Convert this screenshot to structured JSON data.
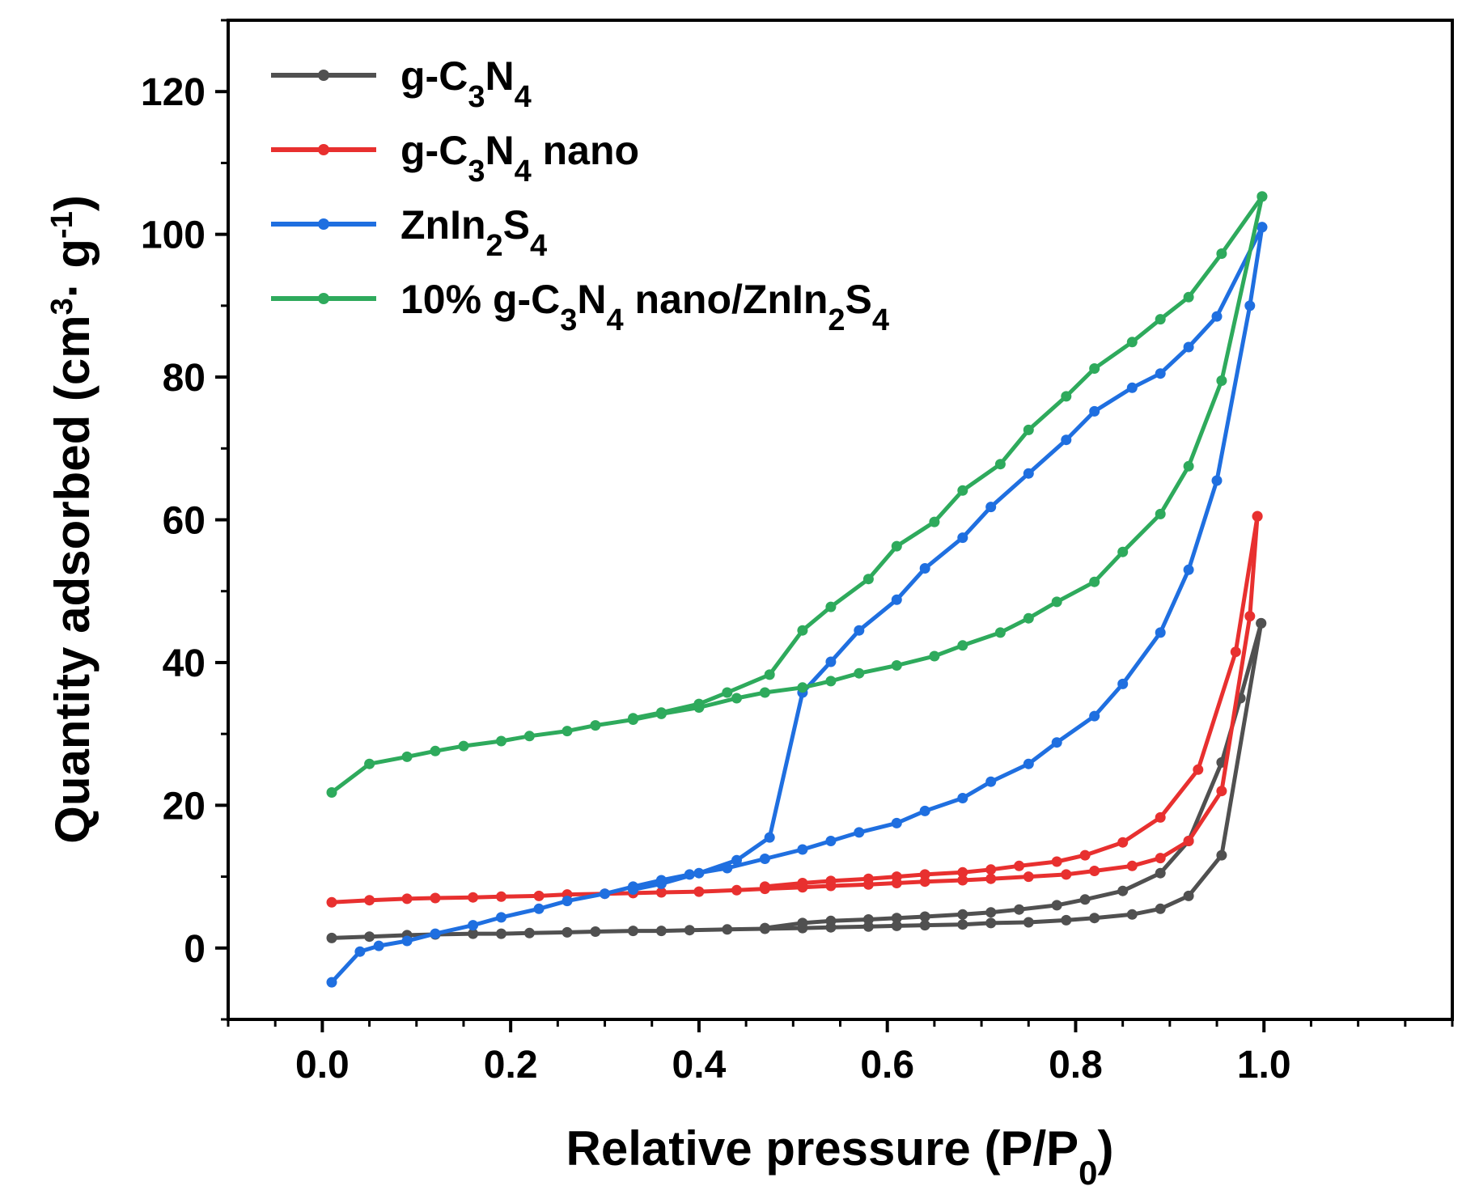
{
  "chart_data": {
    "type": "line",
    "title": "",
    "xlabel": {
      "main": "Relative pressure (P/P",
      "sub": "0",
      "end": ")"
    },
    "ylabel": {
      "main": "Quantity adsorbed (cm",
      "sup": "3",
      "mid": "· g",
      "sup2": "-1",
      "end": ")"
    },
    "xlim": [
      -0.1,
      1.2
    ],
    "ylim": [
      -10,
      130
    ],
    "xticks": [
      0.0,
      0.2,
      0.4,
      0.6,
      0.8,
      1.0
    ],
    "xtick_labels": [
      "0.0",
      "0.2",
      "0.4",
      "0.6",
      "0.8",
      "1.0"
    ],
    "yticks": [
      0,
      20,
      40,
      60,
      80,
      100,
      120
    ],
    "ytick_labels": [
      "0",
      "20",
      "40",
      "60",
      "80",
      "100",
      "120"
    ],
    "legend_position": "top-left",
    "series": [
      {
        "name": "g-C3N4",
        "label_parts": [
          [
            "g-C",
            ""
          ],
          [
            "3",
            "sub"
          ],
          [
            "N",
            ""
          ],
          [
            "4",
            "sub"
          ]
        ],
        "color": "#505050",
        "adsorption": [
          [
            0.01,
            1.4
          ],
          [
            0.05,
            1.6
          ],
          [
            0.09,
            1.8
          ],
          [
            0.12,
            1.9
          ],
          [
            0.16,
            2.0
          ],
          [
            0.19,
            2.0
          ],
          [
            0.22,
            2.1
          ],
          [
            0.26,
            2.2
          ],
          [
            0.29,
            2.3
          ],
          [
            0.33,
            2.4
          ],
          [
            0.36,
            2.4
          ],
          [
            0.39,
            2.5
          ],
          [
            0.43,
            2.6
          ],
          [
            0.47,
            2.7
          ],
          [
            0.51,
            2.8
          ],
          [
            0.54,
            2.9
          ],
          [
            0.58,
            3.0
          ],
          [
            0.61,
            3.1
          ],
          [
            0.64,
            3.2
          ],
          [
            0.68,
            3.3
          ],
          [
            0.71,
            3.5
          ],
          [
            0.75,
            3.6
          ],
          [
            0.79,
            3.9
          ],
          [
            0.82,
            4.2
          ],
          [
            0.86,
            4.7
          ],
          [
            0.89,
            5.5
          ],
          [
            0.92,
            7.3
          ],
          [
            0.955,
            13.0
          ],
          [
            0.997,
            45.5
          ]
        ],
        "desorption": [
          [
            0.997,
            45.5
          ],
          [
            0.975,
            35.0
          ],
          [
            0.955,
            26.0
          ],
          [
            0.92,
            15.0
          ],
          [
            0.89,
            10.5
          ],
          [
            0.85,
            8.0
          ],
          [
            0.81,
            6.8
          ],
          [
            0.78,
            6.0
          ],
          [
            0.74,
            5.4
          ],
          [
            0.71,
            5.0
          ],
          [
            0.68,
            4.7
          ],
          [
            0.64,
            4.4
          ],
          [
            0.61,
            4.2
          ],
          [
            0.58,
            4.0
          ],
          [
            0.54,
            3.8
          ],
          [
            0.51,
            3.5
          ],
          [
            0.47,
            2.8
          ]
        ]
      },
      {
        "name": "g-C3N4 nano",
        "label_parts": [
          [
            "g-C",
            ""
          ],
          [
            "3",
            "sub"
          ],
          [
            "N",
            ""
          ],
          [
            "4",
            "sub"
          ],
          [
            " nano",
            ""
          ]
        ],
        "color": "#e8302f",
        "adsorption": [
          [
            0.01,
            6.4
          ],
          [
            0.05,
            6.7
          ],
          [
            0.09,
            6.9
          ],
          [
            0.12,
            7.0
          ],
          [
            0.16,
            7.1
          ],
          [
            0.19,
            7.2
          ],
          [
            0.23,
            7.3
          ],
          [
            0.26,
            7.5
          ],
          [
            0.3,
            7.6
          ],
          [
            0.33,
            7.7
          ],
          [
            0.36,
            7.8
          ],
          [
            0.4,
            7.9
          ],
          [
            0.44,
            8.1
          ],
          [
            0.47,
            8.3
          ],
          [
            0.51,
            8.5
          ],
          [
            0.54,
            8.7
          ],
          [
            0.58,
            8.9
          ],
          [
            0.61,
            9.1
          ],
          [
            0.64,
            9.3
          ],
          [
            0.68,
            9.5
          ],
          [
            0.71,
            9.7
          ],
          [
            0.75,
            10.0
          ],
          [
            0.79,
            10.3
          ],
          [
            0.82,
            10.8
          ],
          [
            0.86,
            11.5
          ],
          [
            0.89,
            12.6
          ],
          [
            0.92,
            15.0
          ],
          [
            0.955,
            22.0
          ],
          [
            0.985,
            46.5
          ],
          [
            0.993,
            60.5
          ]
        ],
        "desorption": [
          [
            0.993,
            60.5
          ],
          [
            0.97,
            41.5
          ],
          [
            0.93,
            25.0
          ],
          [
            0.89,
            18.3
          ],
          [
            0.85,
            14.8
          ],
          [
            0.81,
            13.0
          ],
          [
            0.78,
            12.1
          ],
          [
            0.74,
            11.5
          ],
          [
            0.71,
            11.0
          ],
          [
            0.68,
            10.6
          ],
          [
            0.64,
            10.3
          ],
          [
            0.61,
            10.0
          ],
          [
            0.58,
            9.7
          ],
          [
            0.54,
            9.4
          ],
          [
            0.51,
            9.1
          ],
          [
            0.47,
            8.6
          ]
        ]
      },
      {
        "name": "ZnIn2S4",
        "label_parts": [
          [
            "ZnIn",
            ""
          ],
          [
            "2",
            "sub"
          ],
          [
            "S",
            ""
          ],
          [
            "4",
            "sub"
          ]
        ],
        "color": "#1f6fe0",
        "adsorption": [
          [
            0.01,
            -4.8
          ],
          [
            0.04,
            -0.5
          ],
          [
            0.06,
            0.3
          ],
          [
            0.09,
            1.0
          ],
          [
            0.12,
            2.0
          ],
          [
            0.16,
            3.2
          ],
          [
            0.19,
            4.3
          ],
          [
            0.23,
            5.5
          ],
          [
            0.26,
            6.6
          ],
          [
            0.3,
            7.6
          ],
          [
            0.33,
            8.6
          ],
          [
            0.36,
            9.5
          ],
          [
            0.39,
            10.3
          ],
          [
            0.43,
            11.2
          ],
          [
            0.47,
            12.5
          ],
          [
            0.51,
            13.8
          ],
          [
            0.54,
            15.0
          ],
          [
            0.57,
            16.2
          ],
          [
            0.61,
            17.5
          ],
          [
            0.64,
            19.2
          ],
          [
            0.68,
            21.0
          ],
          [
            0.71,
            23.3
          ],
          [
            0.75,
            25.8
          ],
          [
            0.78,
            28.8
          ],
          [
            0.82,
            32.5
          ],
          [
            0.85,
            37.0
          ],
          [
            0.89,
            44.2
          ],
          [
            0.92,
            53.0
          ],
          [
            0.95,
            65.5
          ],
          [
            0.985,
            90.0
          ],
          [
            0.998,
            101.0
          ]
        ],
        "desorption": [
          [
            0.998,
            101.0
          ],
          [
            0.95,
            88.5
          ],
          [
            0.92,
            84.2
          ],
          [
            0.89,
            80.5
          ],
          [
            0.86,
            78.5
          ],
          [
            0.82,
            75.2
          ],
          [
            0.79,
            71.2
          ],
          [
            0.75,
            66.5
          ],
          [
            0.71,
            61.8
          ],
          [
            0.68,
            57.5
          ],
          [
            0.64,
            53.2
          ],
          [
            0.61,
            48.8
          ],
          [
            0.57,
            44.5
          ],
          [
            0.54,
            40.1
          ],
          [
            0.51,
            35.8
          ],
          [
            0.475,
            15.5
          ],
          [
            0.44,
            12.3
          ],
          [
            0.4,
            10.5
          ],
          [
            0.36,
            9.0
          ],
          [
            0.33,
            8.2
          ]
        ]
      },
      {
        "name": "10% g-C3N4 nano/ZnIn2S4",
        "label_parts": [
          [
            "10% g-C",
            ""
          ],
          [
            "3",
            "sub"
          ],
          [
            "N",
            ""
          ],
          [
            "4",
            "sub"
          ],
          [
            " nano/ZnIn",
            ""
          ],
          [
            "2",
            "sub"
          ],
          [
            "S",
            ""
          ],
          [
            "4",
            "sub"
          ]
        ],
        "color": "#2eaa5c",
        "adsorption": [
          [
            0.01,
            21.8
          ],
          [
            0.05,
            25.8
          ],
          [
            0.09,
            26.8
          ],
          [
            0.12,
            27.6
          ],
          [
            0.15,
            28.3
          ],
          [
            0.19,
            29.0
          ],
          [
            0.22,
            29.7
          ],
          [
            0.26,
            30.4
          ],
          [
            0.29,
            31.2
          ],
          [
            0.33,
            32.0
          ],
          [
            0.36,
            32.8
          ],
          [
            0.4,
            33.7
          ],
          [
            0.44,
            35.0
          ],
          [
            0.47,
            35.8
          ],
          [
            0.51,
            36.5
          ],
          [
            0.54,
            37.4
          ],
          [
            0.57,
            38.5
          ],
          [
            0.61,
            39.6
          ],
          [
            0.65,
            40.9
          ],
          [
            0.68,
            42.4
          ],
          [
            0.72,
            44.2
          ],
          [
            0.75,
            46.2
          ],
          [
            0.78,
            48.5
          ],
          [
            0.82,
            51.3
          ],
          [
            0.85,
            55.5
          ],
          [
            0.89,
            60.8
          ],
          [
            0.92,
            67.5
          ],
          [
            0.955,
            79.5
          ],
          [
            0.998,
            105.3
          ]
        ],
        "desorption": [
          [
            0.998,
            105.3
          ],
          [
            0.955,
            97.3
          ],
          [
            0.92,
            91.2
          ],
          [
            0.89,
            88.1
          ],
          [
            0.86,
            84.9
          ],
          [
            0.82,
            81.2
          ],
          [
            0.79,
            77.3
          ],
          [
            0.75,
            72.6
          ],
          [
            0.72,
            67.8
          ],
          [
            0.68,
            64.1
          ],
          [
            0.65,
            59.7
          ],
          [
            0.61,
            56.3
          ],
          [
            0.58,
            51.7
          ],
          [
            0.54,
            47.8
          ],
          [
            0.51,
            44.5
          ],
          [
            0.475,
            38.3
          ],
          [
            0.43,
            35.8
          ],
          [
            0.4,
            34.2
          ],
          [
            0.36,
            33.0
          ],
          [
            0.33,
            32.2
          ]
        ]
      }
    ]
  }
}
